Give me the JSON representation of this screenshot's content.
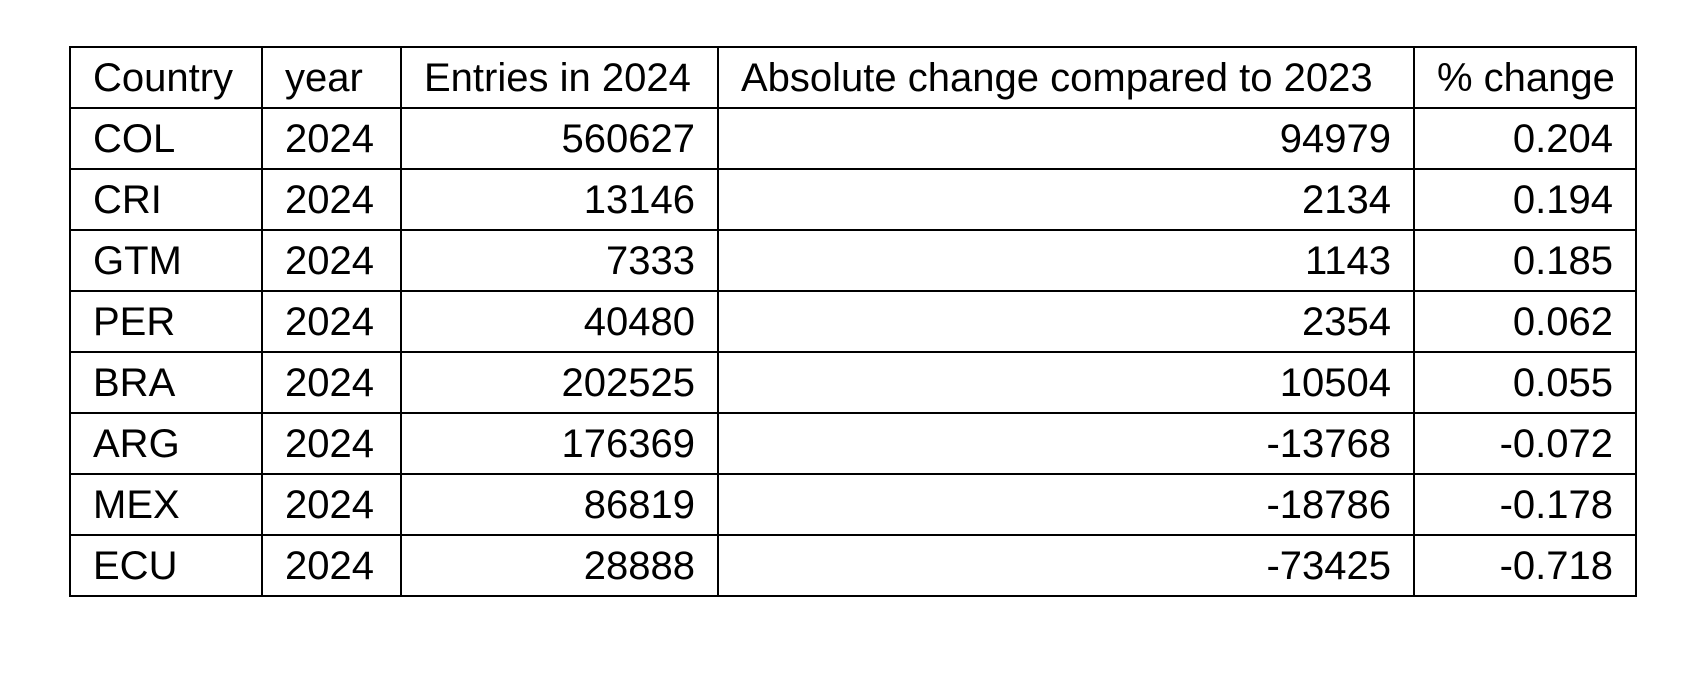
{
  "table": {
    "headers": [
      "Country",
      "year",
      "Entries in 2024",
      "Absolute change compared to 2023",
      "% change"
    ],
    "rows": [
      [
        "COL",
        "2024",
        "560627",
        "94979",
        "0.204"
      ],
      [
        "CRI",
        "2024",
        "13146",
        "2134",
        "0.194"
      ],
      [
        "GTM",
        "2024",
        "7333",
        "1143",
        "0.185"
      ],
      [
        "PER",
        "2024",
        "40480",
        "2354",
        "0.062"
      ],
      [
        "BRA",
        "2024",
        "202525",
        "10504",
        "0.055"
      ],
      [
        "ARG",
        "2024",
        "176369",
        "-13768",
        "-0.072"
      ],
      [
        "MEX",
        "2024",
        "86819",
        "-18786",
        "-0.178"
      ],
      [
        "ECU",
        "2024",
        "28888",
        "-73425",
        "-0.718"
      ]
    ]
  }
}
